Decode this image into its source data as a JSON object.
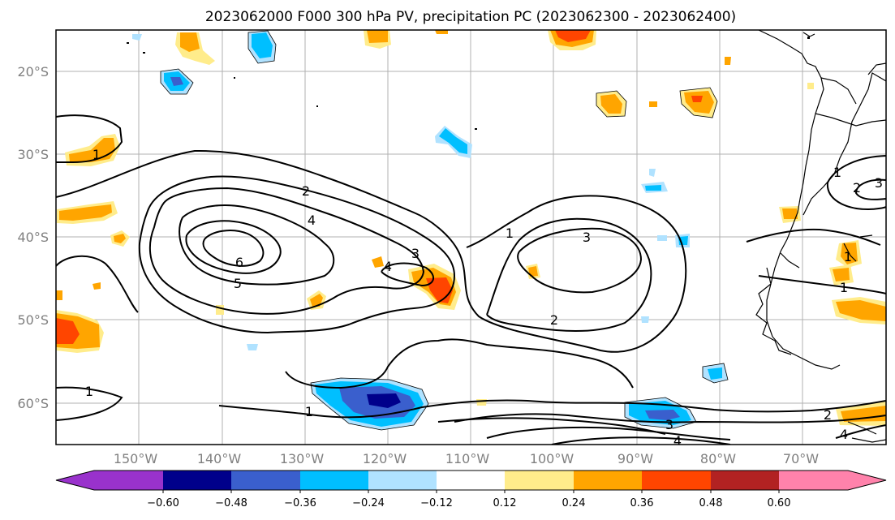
{
  "title": "2023062000 F000 300 hPa PV, precipitation PC (2023062300 - 2023062400)",
  "map": {
    "lon_labels": [
      "150°W",
      "140°W",
      "130°W",
      "120°W",
      "110°W",
      "100°W",
      "90°W",
      "80°W",
      "70°W"
    ],
    "lat_labels": [
      "20°S",
      "30°S",
      "40°S",
      "50°S",
      "60°S"
    ],
    "pv_contour_labels": [
      "1",
      "1",
      "1",
      "1",
      "1",
      "1",
      "1",
      "2",
      "2",
      "2",
      "2",
      "3",
      "3",
      "3",
      "3",
      "4",
      "4",
      "4",
      "4",
      "5",
      "6"
    ]
  },
  "colorbar": {
    "tick_labels": [
      "−0.60",
      "−0.48",
      "−0.36",
      "−0.24",
      "−0.12",
      "0.12",
      "0.24",
      "0.36",
      "0.48",
      "0.60"
    ],
    "colors": [
      "#9932cc",
      "#00008b",
      "#3a5fcd",
      "#00bfff",
      "#b0e2ff",
      "#ffffff",
      "#ffec8b",
      "#ffa500",
      "#ff4500",
      "#b22222",
      "#ff82ab"
    ]
  }
}
